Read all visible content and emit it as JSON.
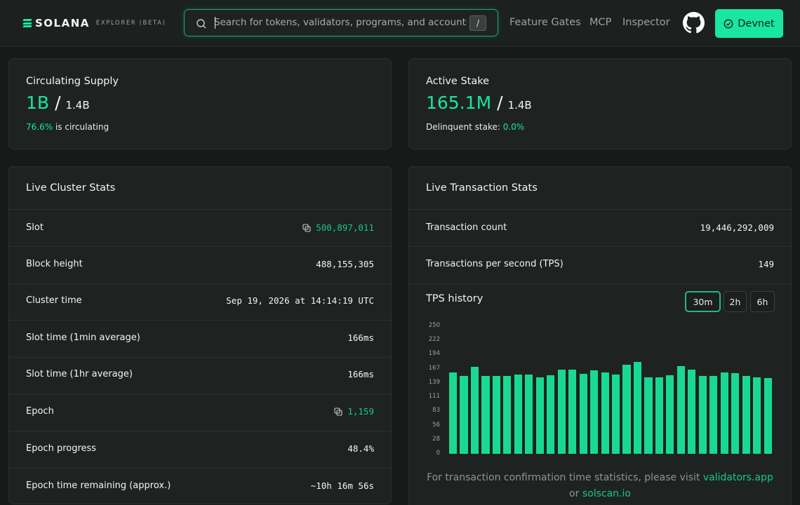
{
  "header": {
    "brand": "SOLANA",
    "brand_sub": "EXPLORER (BETA)",
    "search_placeholder": "Search for tokens, validators, programs, and accounts",
    "search_shortcut": "/",
    "nav": [
      "Feature Gates",
      "MCP",
      "Inspector"
    ],
    "cluster_button": "Devnet",
    "accent": "#19e6a0"
  },
  "supply": {
    "title": "Circulating Supply",
    "value": "1B",
    "separator": "/",
    "total": "1.4B",
    "percent": "76.6%",
    "suffix": " is circulating"
  },
  "stake": {
    "title": "Active Stake",
    "value": "165.1M",
    "separator": "/",
    "total": "1.4B",
    "label": "Delinquent stake: ",
    "percent": "0.0%"
  },
  "cluster": {
    "title": "Live Cluster Stats",
    "rows": [
      {
        "label": "Slot",
        "value": "500,897,011"
      },
      {
        "label": "Block height",
        "value": "488,155,305"
      },
      {
        "label": "Cluster time",
        "value": "Sep 19, 2026 at 14:14:19 UTC"
      },
      {
        "label": "Slot time (1min average)",
        "value": "166ms"
      },
      {
        "label": "Slot time (1hr average)",
        "value": "166ms"
      },
      {
        "label": "Epoch",
        "value": "1,159"
      },
      {
        "label": "Epoch progress",
        "value": "48.4%"
      },
      {
        "label": "Epoch time remaining (approx.)",
        "value": "~10h 16m 56s"
      }
    ]
  },
  "transactions": {
    "title": "Live Transaction Stats",
    "rows": [
      {
        "label": "Transaction count",
        "value": "19,446,292,009"
      },
      {
        "label": "Transactions per second (TPS)",
        "value": "149"
      }
    ],
    "history_title": "TPS history",
    "ranges": [
      "30m",
      "2h",
      "6h"
    ],
    "selected_range": "30m",
    "footnote_prefix": "For transaction confirmation time statistics, please visit ",
    "footnote_link1": "validators.app",
    "footnote_or": "or ",
    "footnote_link2": "solscan.io"
  },
  "chart_data": {
    "type": "bar",
    "title": "TPS history",
    "y_ticks": [
      "250",
      "222",
      "194",
      "167",
      "139",
      "111",
      "83",
      "56",
      "28",
      "0"
    ],
    "ylim": [
      0,
      250
    ],
    "values": [
      160,
      153,
      170,
      152,
      152,
      152,
      155,
      155,
      150,
      154,
      165,
      165,
      157,
      163,
      160,
      155,
      175,
      180,
      150,
      150,
      154,
      172,
      165,
      152,
      153,
      159,
      158,
      153,
      150,
      148
    ],
    "color": "#19d992"
  }
}
